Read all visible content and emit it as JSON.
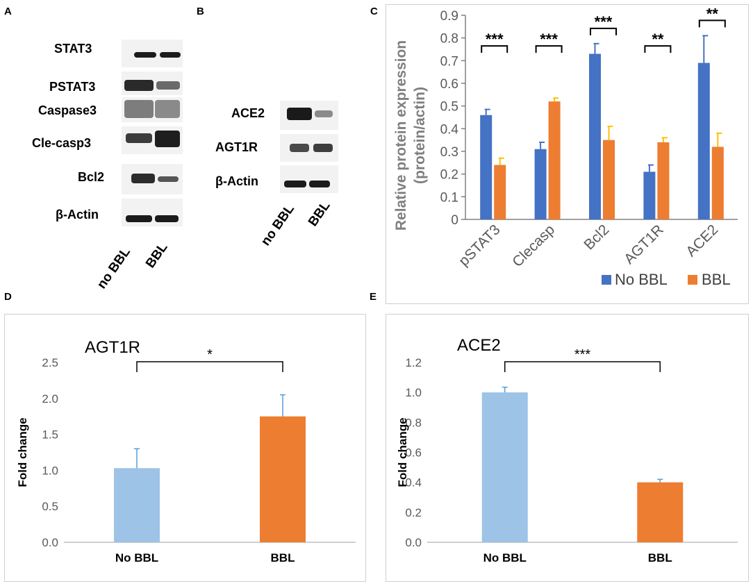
{
  "panels": {
    "a": {
      "letter": "A",
      "rows": [
        "STAT3",
        "PSTAT3",
        "Caspase3",
        "Cle-casp3",
        "Bcl2",
        "β-Actin"
      ],
      "lanes": [
        "no BBL",
        "BBL"
      ]
    },
    "b": {
      "letter": "B",
      "rows": [
        "ACE2",
        "AGT1R",
        "β-Actin"
      ],
      "lanes": [
        "no BBL",
        "BBL"
      ]
    },
    "c": {
      "letter": "C"
    },
    "d": {
      "letter": "D"
    },
    "e": {
      "letter": "E"
    }
  },
  "colors": {
    "no_bbl_c": "#4472c4",
    "bbl_c": "#ed7d31",
    "err_c_bbl": "#ffc000",
    "no_bbl_de": "#9dc3e6",
    "bbl_de": "#ed7d31",
    "axis": "#808080"
  },
  "chart_data": [
    {
      "id": "C",
      "type": "bar",
      "title": "",
      "ylabel": "Relative protein expression (protein/actin)",
      "ylabel_line1": "Relative protein expression",
      "ylabel_line2": "(protein/actin)",
      "xlabel": "",
      "ylim": [
        0,
        0.9
      ],
      "yticks": [
        "0",
        "0.1",
        "0.2",
        "0.3",
        "0.4",
        "0.5",
        "0.6",
        "0.7",
        "0.8",
        "0.9"
      ],
      "categories": [
        "pSTAT3",
        "Clecasp",
        "Bcl2",
        "AGT1R",
        "ACE2"
      ],
      "series": [
        {
          "name": "No BBL",
          "values": [
            0.46,
            0.31,
            0.73,
            0.21,
            0.69
          ],
          "errors": [
            0.025,
            0.03,
            0.045,
            0.03,
            0.12
          ]
        },
        {
          "name": "BBL",
          "values": [
            0.24,
            0.52,
            0.35,
            0.34,
            0.32
          ],
          "errors": [
            0.03,
            0.015,
            0.06,
            0.02,
            0.06
          ]
        }
      ],
      "significance": [
        "***",
        "***",
        "***",
        "**",
        "**"
      ],
      "legend": [
        "No BBL",
        "BBL"
      ],
      "legend_position": "bottom-right"
    },
    {
      "id": "D",
      "type": "bar",
      "title": "AGT1R",
      "ylabel": "Fold change",
      "xlabel": "",
      "ylim": [
        0,
        2.5
      ],
      "yticks": [
        "0.0",
        "0.5",
        "1.0",
        "1.5",
        "2.0",
        "2.5"
      ],
      "categories": [
        "No BBL",
        "BBL"
      ],
      "values": [
        1.03,
        1.75
      ],
      "errors": [
        0.27,
        0.3
      ],
      "significance": "*"
    },
    {
      "id": "E",
      "type": "bar",
      "title": "ACE2",
      "ylabel": "Fold change",
      "xlabel": "",
      "ylim": [
        0,
        1.2
      ],
      "yticks": [
        "0.0",
        "0.2",
        "0.4",
        "0.6",
        "0.8",
        "1.0",
        "1.2"
      ],
      "categories": [
        "No BBL",
        "BBL"
      ],
      "values": [
        1.0,
        0.4
      ],
      "errors": [
        0.035,
        0.02
      ],
      "significance": "***"
    }
  ]
}
